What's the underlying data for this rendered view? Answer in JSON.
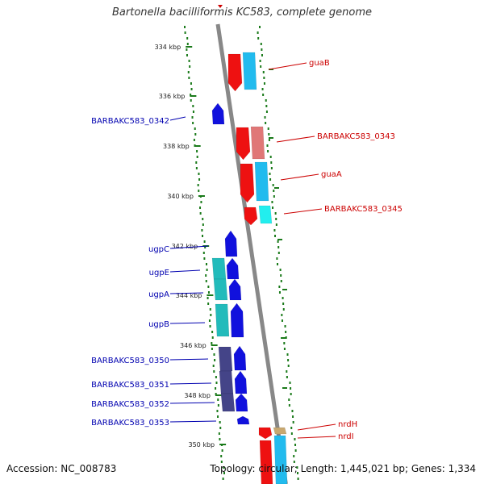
{
  "title": "Bartonella bacilliformis KC583, complete genome",
  "footer": {
    "accession": "Accession: NC_008783",
    "topology": "Topology: circular; Length: 1,445,021 bp; Genes: 1,334"
  },
  "colors": {
    "forward_label": "#0000b0",
    "reverse_label": "#cc0000",
    "backbone": "#888888",
    "gc_dots": "#1a7a1a"
  },
  "ticks": [
    "334 kbp",
    "336 kbp",
    "338 kbp",
    "340 kbp",
    "342 kbp",
    "344 kbp",
    "346 kbp",
    "348 kbp",
    "350 kbp"
  ],
  "labels_left": [
    "BARBAKC583_0342",
    "ugpC",
    "ugpE",
    "ugpA",
    "ugpB",
    "BARBAKC583_0350",
    "BARBAKC583_0351",
    "BARBAKC583_0352",
    "BARBAKC583_0353"
  ],
  "labels_right": [
    "guaB",
    "BARBAKC583_0343",
    "guaA",
    "BARBAKC583_0345",
    "nrdH",
    "nrdI"
  ]
}
